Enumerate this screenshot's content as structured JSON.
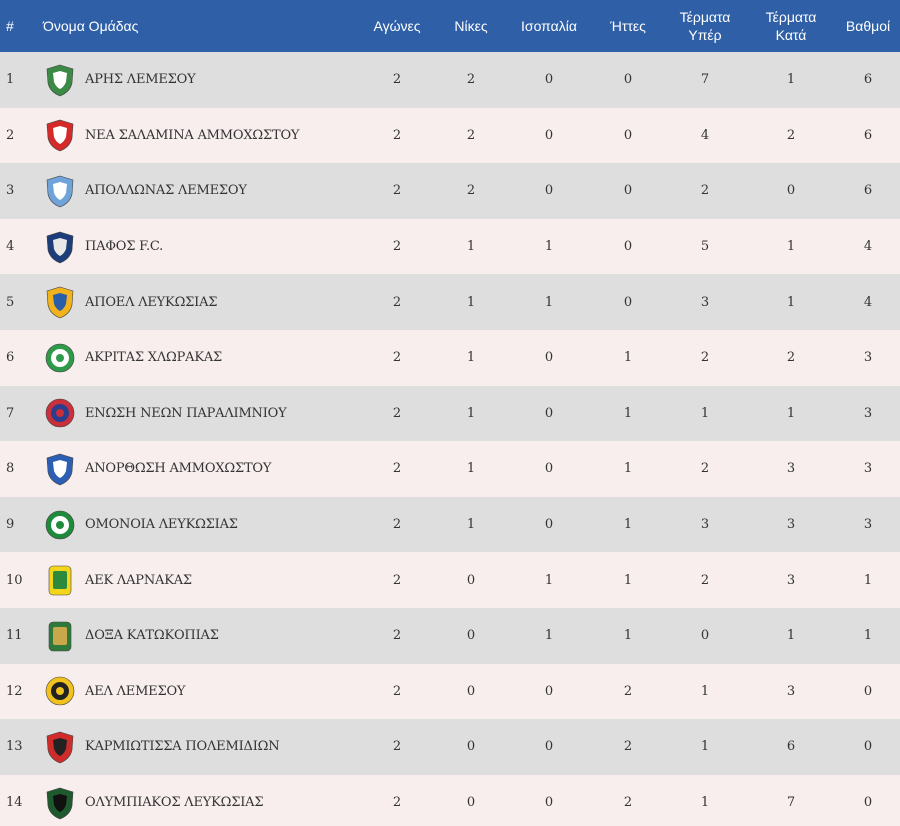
{
  "headers": {
    "pos": "#",
    "team": "Όνομα Ομάδας",
    "played": "Αγώνες",
    "wins": "Νίκες",
    "draws": "Ισοπαλία",
    "losses": "Ήττες",
    "gf_line1": "Τέρματα",
    "gf_line2": "Υπέρ",
    "ga_line1": "Τέρματα",
    "ga_line2": "Κατά",
    "points": "Βαθμοί"
  },
  "rows": [
    {
      "pos": "1",
      "team": "ΑΡΗΣ ΛΕΜΕΣΟΥ",
      "played": "2",
      "wins": "2",
      "draws": "0",
      "losses": "0",
      "gf": "7",
      "ga": "1",
      "points": "6",
      "crest": {
        "icon": "aris-limassol-crest-icon",
        "primary": "#3a8a45",
        "secondary": "#ffffff"
      }
    },
    {
      "pos": "2",
      "team": "ΝΕΑ ΣΑΛΑΜΙΝΑ ΑΜΜΟΧΩΣΤΟΥ",
      "played": "2",
      "wins": "2",
      "draws": "0",
      "losses": "0",
      "gf": "4",
      "ga": "2",
      "points": "6",
      "crest": {
        "icon": "nea-salamina-crest-icon",
        "primary": "#d42a2a",
        "secondary": "#ffffff"
      }
    },
    {
      "pos": "3",
      "team": "ΑΠΟΛΛΩΝΑΣ ΛΕΜΕΣΟΥ",
      "played": "2",
      "wins": "2",
      "draws": "0",
      "losses": "0",
      "gf": "2",
      "ga": "0",
      "points": "6",
      "crest": {
        "icon": "apollon-limassol-crest-icon",
        "primary": "#6fa3d9",
        "secondary": "#ffffff"
      }
    },
    {
      "pos": "4",
      "team": "ΠΑΦΟΣ F.C.",
      "played": "2",
      "wins": "1",
      "draws": "1",
      "losses": "0",
      "gf": "5",
      "ga": "1",
      "points": "4",
      "crest": {
        "icon": "pafos-fc-crest-icon",
        "primary": "#1d3c7a",
        "secondary": "#e8e8e8"
      }
    },
    {
      "pos": "5",
      "team": "ΑΠΟΕΛ ΛΕΥΚΩΣΙΑΣ",
      "played": "2",
      "wins": "1",
      "draws": "1",
      "losses": "0",
      "gf": "3",
      "ga": "1",
      "points": "4",
      "crest": {
        "icon": "apoel-crest-icon",
        "primary": "#f2b21b",
        "secondary": "#2a5ea8"
      }
    },
    {
      "pos": "6",
      "team": "ΑΚΡΙΤΑΣ ΧΛΩΡΑΚΑΣ",
      "played": "2",
      "wins": "1",
      "draws": "0",
      "losses": "1",
      "gf": "2",
      "ga": "2",
      "points": "3",
      "crest": {
        "icon": "akritas-chlorakas-crest-icon",
        "primary": "#2e9a4a",
        "secondary": "#ffffff"
      }
    },
    {
      "pos": "7",
      "team": "ΕΝΩΣΗ ΝΕΩΝ ΠΑΡΑΛΙΜΝΙΟΥ",
      "played": "2",
      "wins": "1",
      "draws": "0",
      "losses": "1",
      "gf": "1",
      "ga": "1",
      "points": "3",
      "crest": {
        "icon": "enp-paralimni-crest-icon",
        "primary": "#c9303a",
        "secondary": "#2a3d8f"
      }
    },
    {
      "pos": "8",
      "team": "ΑΝΟΡΘΩΣΗ ΑΜΜΟΧΩΣΤΟΥ",
      "played": "2",
      "wins": "1",
      "draws": "0",
      "losses": "1",
      "gf": "2",
      "ga": "3",
      "points": "3",
      "crest": {
        "icon": "anorthosis-crest-icon",
        "primary": "#2c5fb3",
        "secondary": "#ffffff"
      }
    },
    {
      "pos": "9",
      "team": "ΟΜΟΝΟΙΑ ΛΕΥΚΩΣΙΑΣ",
      "played": "2",
      "wins": "1",
      "draws": "0",
      "losses": "1",
      "gf": "3",
      "ga": "3",
      "points": "3",
      "crest": {
        "icon": "omonoia-crest-icon",
        "primary": "#1f8a3c",
        "secondary": "#ffffff"
      }
    },
    {
      "pos": "10",
      "team": "ΑΕΚ ΛΑΡΝΑΚΑΣ",
      "played": "2",
      "wins": "0",
      "draws": "1",
      "losses": "1",
      "gf": "2",
      "ga": "3",
      "points": "1",
      "crest": {
        "icon": "aek-larnaca-crest-icon",
        "primary": "#f3d51c",
        "secondary": "#2d8a3c"
      }
    },
    {
      "pos": "11",
      "team": "ΔΟΞΑ ΚΑΤΩΚΟΠΙΑΣ",
      "played": "2",
      "wins": "0",
      "draws": "1",
      "losses": "1",
      "gf": "0",
      "ga": "1",
      "points": "1",
      "crest": {
        "icon": "doxa-katokopias-crest-icon",
        "primary": "#2f7a3a",
        "secondary": "#c9a84b"
      }
    },
    {
      "pos": "12",
      "team": "ΑΕΛ ΛΕΜΕΣΟΥ",
      "played": "2",
      "wins": "0",
      "draws": "0",
      "losses": "2",
      "gf": "1",
      "ga": "3",
      "points": "0",
      "crest": {
        "icon": "ael-limassol-crest-icon",
        "primary": "#f1c21b",
        "secondary": "#222222"
      }
    },
    {
      "pos": "13",
      "team": "ΚΑΡΜΙΩΤΙΣΣΑ ΠΟΛΕΜΙΔΙΩΝ",
      "played": "2",
      "wins": "0",
      "draws": "0",
      "losses": "2",
      "gf": "1",
      "ga": "6",
      "points": "0",
      "crest": {
        "icon": "karmiotissa-crest-icon",
        "primary": "#d02b2b",
        "secondary": "#222222"
      }
    },
    {
      "pos": "14",
      "team": "ΟΛΥΜΠΙΑΚΟΣ ΛΕΥΚΩΣΙΑΣ",
      "played": "2",
      "wins": "0",
      "draws": "0",
      "losses": "2",
      "gf": "1",
      "ga": "7",
      "points": "0",
      "crest": {
        "icon": "olympiakos-nicosia-crest-icon",
        "primary": "#1f5a2f",
        "secondary": "#111111"
      }
    }
  ]
}
